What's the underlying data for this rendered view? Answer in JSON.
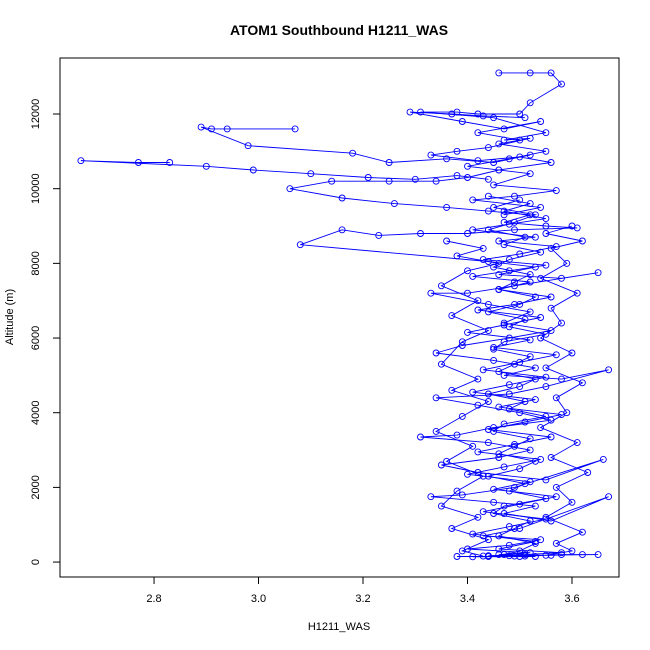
{
  "chart_data": {
    "type": "line",
    "title": "ATOM1 Southbound H1211_WAS",
    "xlabel": "H1211_WAS",
    "ylabel": "Altitude (m)",
    "xlim": [
      2.62,
      3.69
    ],
    "ylim": [
      -400,
      13500
    ],
    "xticks": [
      2.8,
      3.0,
      3.2,
      3.4,
      3.6
    ],
    "yticks": [
      0,
      2000,
      4000,
      6000,
      8000,
      10000,
      12000
    ],
    "grid": false,
    "legend": "none",
    "marker": "open-circle",
    "series": [
      {
        "color": "#0000ff",
        "points": [
          [
            3.46,
            13100
          ],
          [
            3.52,
            13100
          ],
          [
            3.56,
            13100
          ],
          [
            3.58,
            12800
          ],
          [
            3.52,
            12300
          ],
          [
            3.5,
            12000
          ],
          [
            3.42,
            12000
          ],
          [
            3.38,
            12050
          ],
          [
            3.31,
            12050
          ],
          [
            3.45,
            11900
          ],
          [
            3.55,
            11500
          ],
          [
            3.47,
            11300
          ],
          [
            3.52,
            11350
          ],
          [
            3.44,
            11100
          ],
          [
            3.38,
            11000
          ],
          [
            3.33,
            10900
          ],
          [
            3.42,
            10750
          ],
          [
            3.5,
            10850
          ],
          [
            3.56,
            10700
          ],
          [
            3.46,
            10500
          ],
          [
            3.4,
            10300
          ],
          [
            3.34,
            10200
          ],
          [
            3.25,
            10200
          ],
          [
            3.14,
            10200
          ],
          [
            3.06,
            10000
          ],
          [
            3.16,
            9750
          ],
          [
            3.26,
            9600
          ],
          [
            3.36,
            9500
          ],
          [
            3.44,
            9400
          ],
          [
            3.52,
            9300
          ],
          [
            3.47,
            9100
          ],
          [
            3.55,
            9000
          ],
          [
            3.61,
            8950
          ],
          [
            3.49,
            8900
          ],
          [
            3.4,
            8800
          ],
          [
            3.31,
            8800
          ],
          [
            3.23,
            8750
          ],
          [
            3.16,
            8900
          ],
          [
            3.08,
            8500
          ],
          [
            3.44,
            8050
          ],
          [
            3.53,
            7900
          ],
          [
            3.46,
            7700
          ],
          [
            3.58,
            7600
          ],
          [
            3.65,
            7750
          ],
          [
            3.49,
            7400
          ],
          [
            3.4,
            7200
          ],
          [
            3.33,
            7200
          ],
          [
            3.44,
            6900
          ],
          [
            3.52,
            6700
          ],
          [
            3.47,
            6400
          ],
          [
            3.56,
            6200
          ],
          [
            3.48,
            6000
          ],
          [
            3.39,
            5800
          ],
          [
            3.34,
            5600
          ],
          [
            3.45,
            5400
          ],
          [
            3.53,
            5200
          ],
          [
            3.47,
            5000
          ],
          [
            3.58,
            4900
          ],
          [
            3.67,
            5150
          ],
          [
            3.55,
            4700
          ],
          [
            3.48,
            4500
          ],
          [
            3.34,
            4400
          ],
          [
            3.42,
            4200
          ],
          [
            3.5,
            4000
          ],
          [
            3.56,
            3800
          ],
          [
            3.45,
            3600
          ],
          [
            3.38,
            3400
          ],
          [
            3.31,
            3350
          ],
          [
            3.44,
            3200
          ],
          [
            3.52,
            3000
          ],
          [
            3.46,
            2800
          ],
          [
            3.35,
            2600
          ],
          [
            3.42,
            2400
          ],
          [
            3.55,
            2200
          ],
          [
            3.66,
            2750
          ],
          [
            3.49,
            2000
          ],
          [
            3.39,
            1800
          ],
          [
            3.33,
            1750
          ],
          [
            3.45,
            1600
          ],
          [
            3.53,
            1500
          ],
          [
            3.47,
            1300
          ],
          [
            3.56,
            1100
          ],
          [
            3.67,
            1750
          ],
          [
            3.5,
            900
          ],
          [
            3.43,
            700
          ],
          [
            3.54,
            600
          ],
          [
            3.48,
            450
          ],
          [
            3.4,
            350
          ],
          [
            3.52,
            250
          ],
          [
            3.46,
            200
          ],
          [
            3.56,
            180
          ],
          [
            3.62,
            200
          ],
          [
            3.44,
            150
          ],
          [
            3.38,
            150
          ],
          [
            3.5,
            150
          ],
          [
            3.58,
            200
          ],
          [
            3.65,
            200
          ],
          [
            3.48,
            170
          ],
          [
            3.41,
            140
          ],
          [
            3.53,
            150
          ]
        ]
      },
      {
        "color": "#0000ff",
        "points": [
          [
            2.83,
            10700
          ],
          [
            2.77,
            10700
          ],
          [
            2.66,
            10750
          ],
          [
            2.9,
            10600
          ],
          [
            2.99,
            10500
          ],
          [
            3.1,
            10400
          ],
          [
            3.21,
            10300
          ],
          [
            3.3,
            10250
          ],
          [
            3.38,
            10350
          ],
          [
            3.44,
            10250
          ]
        ]
      },
      {
        "color": "#0000ff",
        "points": [
          [
            3.07,
            11600
          ],
          [
            2.94,
            11600
          ],
          [
            2.91,
            11600
          ],
          [
            2.89,
            11650
          ],
          [
            2.98,
            11150
          ],
          [
            3.18,
            10950
          ],
          [
            3.25,
            10700
          ],
          [
            3.36,
            10800
          ],
          [
            3.45,
            10700
          ],
          [
            3.52,
            10900
          ]
        ]
      },
      {
        "color": "#0000ff",
        "points": [
          [
            3.51,
            11900
          ],
          [
            3.43,
            11950
          ],
          [
            3.37,
            12000
          ],
          [
            3.29,
            12050
          ],
          [
            3.39,
            11800
          ],
          [
            3.47,
            11600
          ],
          [
            3.54,
            11800
          ],
          [
            3.42,
            11500
          ],
          [
            3.5,
            11300
          ],
          [
            3.46,
            11200
          ],
          [
            3.55,
            11000
          ],
          [
            3.48,
            10800
          ],
          [
            3.4,
            10600
          ],
          [
            3.52,
            10400
          ],
          [
            3.45,
            10100
          ],
          [
            3.57,
            9950
          ],
          [
            3.49,
            9800
          ],
          [
            3.41,
            9700
          ],
          [
            3.54,
            9500
          ],
          [
            3.47,
            9300
          ]
        ]
      },
      {
        "color": "#0000ff",
        "points": [
          [
            3.44,
            9800
          ],
          [
            3.52,
            9600
          ],
          [
            3.47,
            9400
          ],
          [
            3.55,
            9200
          ],
          [
            3.48,
            9050
          ],
          [
            3.41,
            8900
          ],
          [
            3.53,
            8700
          ],
          [
            3.46,
            8600
          ],
          [
            3.57,
            8450
          ],
          [
            3.5,
            8250
          ],
          [
            3.43,
            8100
          ],
          [
            3.55,
            7950
          ],
          [
            3.48,
            7800
          ],
          [
            3.41,
            7650
          ],
          [
            3.52,
            7500
          ],
          [
            3.46,
            7300
          ],
          [
            3.56,
            7100
          ],
          [
            3.49,
            6900
          ],
          [
            3.42,
            6750
          ],
          [
            3.54,
            6550
          ],
          [
            3.47,
            6350
          ],
          [
            3.4,
            6150
          ],
          [
            3.52,
            5950
          ],
          [
            3.45,
            5750
          ],
          [
            3.57,
            5550
          ],
          [
            3.5,
            5350
          ],
          [
            3.43,
            5150
          ],
          [
            3.55,
            4950
          ],
          [
            3.48,
            4750
          ],
          [
            3.41,
            4550
          ],
          [
            3.53,
            4350
          ],
          [
            3.46,
            4150
          ],
          [
            3.58,
            3950
          ],
          [
            3.51,
            3750
          ],
          [
            3.44,
            3550
          ],
          [
            3.56,
            3350
          ],
          [
            3.49,
            3150
          ],
          [
            3.42,
            2950
          ],
          [
            3.54,
            2750
          ],
          [
            3.47,
            2550
          ],
          [
            3.4,
            2350
          ],
          [
            3.52,
            2150
          ],
          [
            3.45,
            1950
          ],
          [
            3.57,
            1750
          ],
          [
            3.5,
            1550
          ],
          [
            3.43,
            1350
          ],
          [
            3.55,
            1150
          ],
          [
            3.48,
            950
          ],
          [
            3.41,
            750
          ],
          [
            3.53,
            550
          ],
          [
            3.46,
            350
          ],
          [
            3.58,
            250
          ],
          [
            3.51,
            200
          ],
          [
            3.44,
            170
          ],
          [
            3.49,
            160
          ]
        ]
      },
      {
        "color": "#0000ff",
        "points": [
          [
            3.5,
            9700
          ],
          [
            3.45,
            9500
          ],
          [
            3.53,
            9300
          ],
          [
            3.49,
            9100
          ],
          [
            3.44,
            8900
          ],
          [
            3.51,
            8700
          ],
          [
            3.47,
            8500
          ],
          [
            3.54,
            8300
          ],
          [
            3.48,
            8100
          ],
          [
            3.45,
            7900
          ],
          [
            3.52,
            7700
          ],
          [
            3.49,
            7500
          ],
          [
            3.46,
            7300
          ],
          [
            3.53,
            7100
          ],
          [
            3.5,
            6900
          ],
          [
            3.44,
            6700
          ],
          [
            3.51,
            6500
          ],
          [
            3.48,
            6300
          ],
          [
            3.55,
            6100
          ],
          [
            3.47,
            5900
          ],
          [
            3.45,
            5700
          ],
          [
            3.52,
            5500
          ],
          [
            3.49,
            5300
          ],
          [
            3.46,
            5100
          ],
          [
            3.53,
            4900
          ],
          [
            3.5,
            4700
          ],
          [
            3.44,
            4500
          ],
          [
            3.51,
            4300
          ],
          [
            3.48,
            4100
          ],
          [
            3.55,
            3900
          ],
          [
            3.47,
            3700
          ],
          [
            3.45,
            3500
          ],
          [
            3.52,
            3300
          ],
          [
            3.49,
            3100
          ],
          [
            3.46,
            2900
          ],
          [
            3.53,
            2700
          ],
          [
            3.5,
            2500
          ],
          [
            3.44,
            2300
          ],
          [
            3.51,
            2100
          ],
          [
            3.48,
            1900
          ],
          [
            3.55,
            1700
          ],
          [
            3.47,
            1500
          ],
          [
            3.45,
            1300
          ],
          [
            3.52,
            1100
          ],
          [
            3.49,
            900
          ],
          [
            3.46,
            700
          ],
          [
            3.53,
            500
          ],
          [
            3.5,
            300
          ],
          [
            3.47,
            200
          ],
          [
            3.51,
            160
          ]
        ]
      },
      {
        "color": "#0000ff",
        "points": [
          [
            3.36,
            8600
          ],
          [
            3.43,
            8400
          ],
          [
            3.38,
            8200
          ],
          [
            3.46,
            8000
          ],
          [
            3.4,
            7800
          ],
          [
            3.35,
            7400
          ],
          [
            3.42,
            7000
          ],
          [
            3.37,
            6600
          ],
          [
            3.44,
            6200
          ],
          [
            3.39,
            5900
          ],
          [
            3.35,
            5300
          ],
          [
            3.42,
            4900
          ],
          [
            3.37,
            4600
          ],
          [
            3.44,
            4300
          ],
          [
            3.39,
            3900
          ],
          [
            3.34,
            3500
          ],
          [
            3.41,
            3100
          ],
          [
            3.36,
            2700
          ],
          [
            3.43,
            2300
          ],
          [
            3.38,
            1900
          ],
          [
            3.35,
            1500
          ],
          [
            3.42,
            1200
          ],
          [
            3.37,
            900
          ],
          [
            3.44,
            600
          ],
          [
            3.39,
            300
          ],
          [
            3.43,
            160
          ]
        ]
      },
      {
        "color": "#0000ff",
        "points": [
          [
            3.6,
            9000
          ],
          [
            3.55,
            8800
          ],
          [
            3.62,
            8600
          ],
          [
            3.56,
            8400
          ],
          [
            3.59,
            8000
          ],
          [
            3.54,
            7600
          ],
          [
            3.61,
            7200
          ],
          [
            3.56,
            6800
          ],
          [
            3.58,
            6400
          ],
          [
            3.54,
            6000
          ],
          [
            3.6,
            5600
          ],
          [
            3.55,
            5200
          ],
          [
            3.62,
            4800
          ],
          [
            3.57,
            4400
          ],
          [
            3.59,
            4000
          ],
          [
            3.54,
            3600
          ],
          [
            3.61,
            3200
          ],
          [
            3.56,
            2800
          ],
          [
            3.63,
            2400
          ],
          [
            3.57,
            2000
          ],
          [
            3.6,
            1600
          ],
          [
            3.55,
            1200
          ],
          [
            3.62,
            800
          ],
          [
            3.57,
            500
          ],
          [
            3.6,
            300
          ],
          [
            3.55,
            180
          ]
        ]
      }
    ]
  }
}
